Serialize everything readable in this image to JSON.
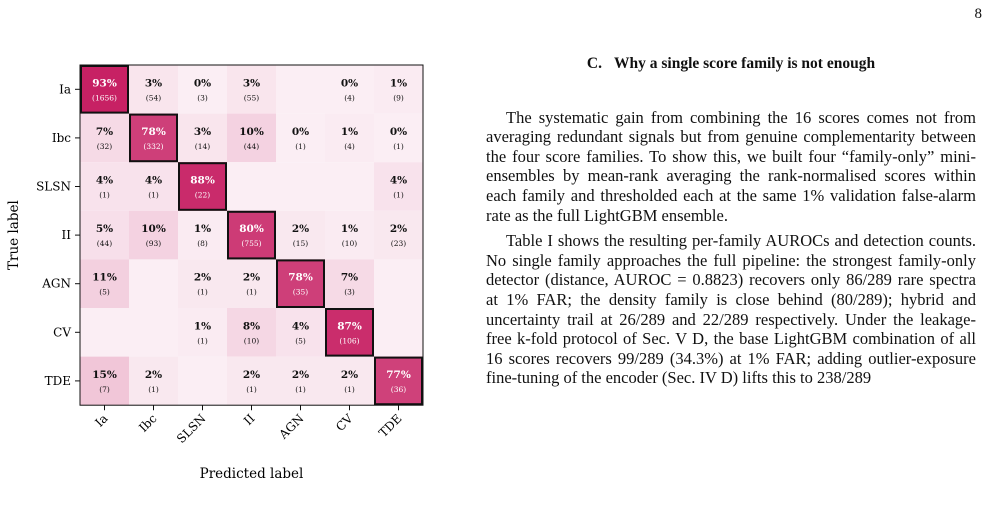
{
  "page_number": "8",
  "section": {
    "number": "C.",
    "title": "Why a single score family is not enough"
  },
  "paragraphs": [
    "The systematic gain from combining the 16 scores comes not from averaging redundant signals but from genuine complementarity between the four score families. To show this, we built four “family-only” mini-ensembles by mean-rank averaging the rank-normalised scores within each family and thresholded each at the same 1% validation false-alarm rate as the full LightGBM ensemble.",
    "Table I shows the resulting per-family AUROCs and detection counts. No single family approaches the full pipeline: the strongest family-only detector (distance, AUROC = 0.8823) recovers only 86/289 rare spectra at 1% FAR; the density family is close behind (80/289); hybrid and uncertainty trail at 26/289 and 22/289 respectively. Under the leakage-free k-fold protocol of Sec. V D, the base LightGBM combination of all 16 scores recovers 99/289 (34.3%) at 1% FAR; adding outlier-exposure fine-tuning of the encoder (Sec. IV D) lifts this to 238/289"
  ],
  "colors": {
    "cmap_low": "#fbeef4",
    "cmap_high": "#c3135a",
    "diag_border": "#111111"
  },
  "chart_data": {
    "type": "heatmap",
    "title": "",
    "xlabel": "Predicted label",
    "ylabel": "True label",
    "x_categories": [
      "Ia",
      "Ibc",
      "SLSN",
      "II",
      "AGN",
      "CV",
      "TDE"
    ],
    "y_categories": [
      "Ia",
      "Ibc",
      "SLSN",
      "II",
      "AGN",
      "CV",
      "TDE"
    ],
    "highlight_diagonal": true,
    "cells": [
      [
        {
          "pct": "93%",
          "count": "(1656)"
        },
        {
          "pct": "3%",
          "count": "(54)"
        },
        {
          "pct": "0%",
          "count": "(3)"
        },
        {
          "pct": "3%",
          "count": "(55)"
        },
        null,
        {
          "pct": "0%",
          "count": "(4)"
        },
        {
          "pct": "1%",
          "count": "(9)"
        }
      ],
      [
        {
          "pct": "7%",
          "count": "(32)"
        },
        {
          "pct": "78%",
          "count": "(332)"
        },
        {
          "pct": "3%",
          "count": "(14)"
        },
        {
          "pct": "10%",
          "count": "(44)"
        },
        {
          "pct": "0%",
          "count": "(1)"
        },
        {
          "pct": "1%",
          "count": "(4)"
        },
        {
          "pct": "0%",
          "count": "(1)"
        }
      ],
      [
        {
          "pct": "4%",
          "count": "(1)"
        },
        {
          "pct": "4%",
          "count": "(1)"
        },
        {
          "pct": "88%",
          "count": "(22)"
        },
        null,
        null,
        null,
        {
          "pct": "4%",
          "count": "(1)"
        }
      ],
      [
        {
          "pct": "5%",
          "count": "(44)"
        },
        {
          "pct": "10%",
          "count": "(93)"
        },
        {
          "pct": "1%",
          "count": "(8)"
        },
        {
          "pct": "80%",
          "count": "(755)"
        },
        {
          "pct": "2%",
          "count": "(15)"
        },
        {
          "pct": "1%",
          "count": "(10)"
        },
        {
          "pct": "2%",
          "count": "(23)"
        }
      ],
      [
        {
          "pct": "11%",
          "count": "(5)"
        },
        null,
        {
          "pct": "2%",
          "count": "(1)"
        },
        {
          "pct": "2%",
          "count": "(1)"
        },
        {
          "pct": "78%",
          "count": "(35)"
        },
        {
          "pct": "7%",
          "count": "(3)"
        },
        null
      ],
      [
        null,
        null,
        {
          "pct": "1%",
          "count": "(1)"
        },
        {
          "pct": "8%",
          "count": "(10)"
        },
        {
          "pct": "4%",
          "count": "(5)"
        },
        {
          "pct": "87%",
          "count": "(106)"
        },
        null
      ],
      [
        {
          "pct": "15%",
          "count": "(7)"
        },
        {
          "pct": "2%",
          "count": "(1)"
        },
        null,
        {
          "pct": "2%",
          "count": "(1)"
        },
        {
          "pct": "2%",
          "count": "(1)"
        },
        {
          "pct": "2%",
          "count": "(1)"
        },
        {
          "pct": "77%",
          "count": "(36)"
        }
      ]
    ]
  }
}
